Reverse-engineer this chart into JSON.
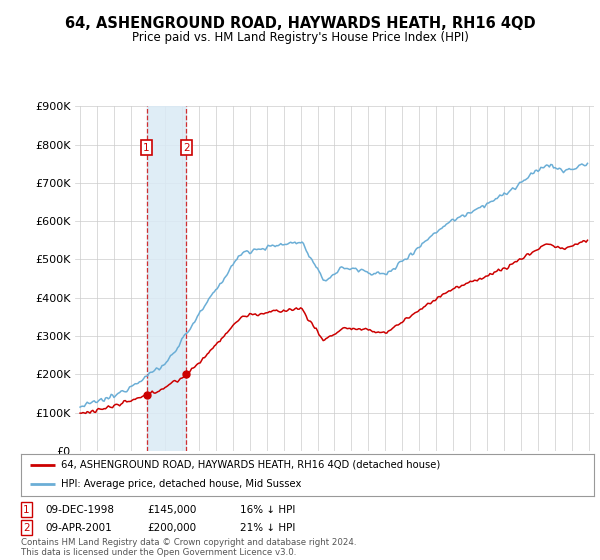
{
  "title": "64, ASHENGROUND ROAD, HAYWARDS HEATH, RH16 4QD",
  "subtitle": "Price paid vs. HM Land Registry's House Price Index (HPI)",
  "legend_line1": "64, ASHENGROUND ROAD, HAYWARDS HEATH, RH16 4QD (detached house)",
  "legend_line2": "HPI: Average price, detached house, Mid Sussex",
  "footnote": "Contains HM Land Registry data © Crown copyright and database right 2024.\nThis data is licensed under the Open Government Licence v3.0.",
  "sale1_date": "09-DEC-1998",
  "sale1_price": "£145,000",
  "sale1_note": "16% ↓ HPI",
  "sale2_date": "09-APR-2001",
  "sale2_price": "£200,000",
  "sale2_note": "21% ↓ HPI",
  "sale1_x": 1998.92,
  "sale1_y": 145000,
  "sale2_x": 2001.27,
  "sale2_y": 200000,
  "hpi_color": "#6baed6",
  "price_color": "#cc0000",
  "shade_color": "#daeaf5",
  "background_color": "#ffffff",
  "grid_color": "#cccccc",
  "ylim": [
    0,
    900000
  ],
  "yticks": [
    0,
    100000,
    200000,
    300000,
    400000,
    500000,
    600000,
    700000,
    800000,
    900000
  ],
  "ytick_labels": [
    "£0",
    "£100K",
    "£200K",
    "£300K",
    "£400K",
    "£500K",
    "£600K",
    "£700K",
    "£800K",
    "£900K"
  ],
  "xlim_start": 1994.7,
  "xlim_end": 2025.3
}
